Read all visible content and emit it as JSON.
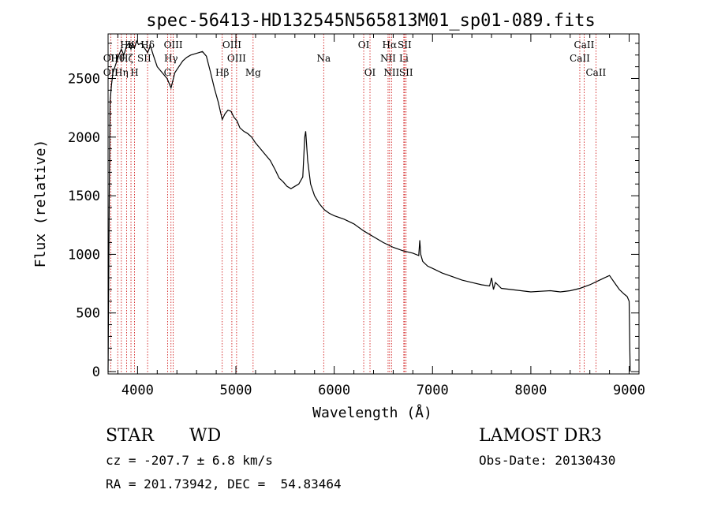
{
  "chart_data": {
    "type": "line",
    "title": "spec-56413-HD132545N565813M01_sp01-089.fits",
    "xlabel": "Wavelength (Å)",
    "ylabel": "Flux (relative)",
    "xlim": [
      3700,
      9100
    ],
    "ylim": [
      -20,
      2880
    ],
    "xticks": [
      4000,
      5000,
      6000,
      7000,
      8000,
      9000
    ],
    "yticks": [
      0,
      500,
      1000,
      1500,
      2000,
      2500
    ],
    "x_tick_labels": [
      "4000",
      "5000",
      "6000",
      "7000",
      "8000",
      "9000"
    ],
    "y_tick_labels": [
      "0",
      "500",
      "1000",
      "1500",
      "2000",
      "2500"
    ],
    "grid": false,
    "series": [
      {
        "name": "spectrum",
        "x": [
          3700,
          3712,
          3720,
          3735,
          3750,
          3770,
          3790,
          3810,
          3835,
          3860,
          3890,
          3910,
          3933,
          3950,
          3969,
          3990,
          4010,
          4040,
          4070,
          4102,
          4130,
          4160,
          4200,
          4250,
          4300,
          4340,
          4380,
          4420,
          4460,
          4500,
          4540,
          4580,
          4620,
          4660,
          4700,
          4740,
          4780,
          4820,
          4861,
          4890,
          4920,
          4950,
          4980,
          5010,
          5040,
          5080,
          5120,
          5160,
          5200,
          5250,
          5300,
          5350,
          5400,
          5440,
          5480,
          5520,
          5560,
          5600,
          5640,
          5680,
          5700,
          5710,
          5730,
          5760,
          5800,
          5850,
          5900,
          5950,
          6000,
          6100,
          6200,
          6300,
          6400,
          6500,
          6600,
          6700,
          6800,
          6860,
          6870,
          6880,
          6900,
          6950,
          7000,
          7100,
          7200,
          7300,
          7400,
          7500,
          7580,
          7600,
          7620,
          7640,
          7700,
          7800,
          7900,
          8000,
          8100,
          8200,
          8300,
          8400,
          8500,
          8600,
          8700,
          8750,
          8800,
          8850,
          8900,
          8950,
          8980,
          9000,
          9010
        ],
        "values": [
          0,
          1500,
          2300,
          2450,
          2550,
          2600,
          2650,
          2700,
          2750,
          2700,
          2780,
          2800,
          2750,
          2800,
          2760,
          2820,
          2790,
          2800,
          2760,
          2720,
          2780,
          2700,
          2600,
          2550,
          2500,
          2420,
          2550,
          2600,
          2650,
          2680,
          2700,
          2710,
          2720,
          2730,
          2690,
          2560,
          2420,
          2300,
          2150,
          2200,
          2230,
          2220,
          2170,
          2140,
          2080,
          2050,
          2030,
          2000,
          1950,
          1900,
          1850,
          1800,
          1720,
          1650,
          1620,
          1580,
          1560,
          1580,
          1600,
          1660,
          2000,
          2050,
          1800,
          1600,
          1500,
          1430,
          1380,
          1350,
          1330,
          1300,
          1260,
          1200,
          1150,
          1100,
          1060,
          1030,
          1010,
          990,
          1120,
          1000,
          940,
          900,
          880,
          840,
          810,
          780,
          760,
          740,
          730,
          800,
          700,
          760,
          710,
          700,
          690,
          680,
          685,
          690,
          680,
          690,
          710,
          740,
          780,
          800,
          820,
          760,
          700,
          660,
          640,
          600,
          0
        ]
      }
    ],
    "line_markers": [
      {
        "label": "Hδ",
        "x": 4102,
        "row": 0
      },
      {
        "label": "OII",
        "x": 3727,
        "row": 1
      },
      {
        "label": "OII",
        "x": 3727,
        "row": 2
      },
      {
        "label": "Hε",
        "x": 3889,
        "row": 0
      },
      {
        "label": "Hθ",
        "x": 3798,
        "row": 1
      },
      {
        "label": "Hη",
        "x": 3835,
        "row": 2
      },
      {
        "label": "K",
        "x": 3933,
        "row": 0
      },
      {
        "label": "Hζ",
        "x": 3889,
        "row": 1
      },
      {
        "label": "H",
        "x": 3969,
        "row": 2
      },
      {
        "label": "SII",
        "x": 4068,
        "row": 1
      },
      {
        "label": "OIII",
        "x": 4363,
        "row": 0
      },
      {
        "label": "Hγ",
        "x": 4340,
        "row": 1
      },
      {
        "label": "G",
        "x": 4305,
        "row": 2
      },
      {
        "label": "OIII",
        "x": 4959,
        "row": 0
      },
      {
        "label": "OIII",
        "x": 5007,
        "row": 1
      },
      {
        "label": "Hβ",
        "x": 4861,
        "row": 2
      },
      {
        "label": "Mg",
        "x": 5175,
        "row": 2
      },
      {
        "label": "Na",
        "x": 5893,
        "row": 1
      },
      {
        "label": "OI",
        "x": 6300,
        "row": 0
      },
      {
        "label": "OI",
        "x": 6364,
        "row": 2
      },
      {
        "label": "Hα",
        "x": 6563,
        "row": 0
      },
      {
        "label": "SII",
        "x": 6716,
        "row": 0
      },
      {
        "label": "NII",
        "x": 6548,
        "row": 1
      },
      {
        "label": "Li",
        "x": 6708,
        "row": 1
      },
      {
        "label": "NII",
        "x": 6583,
        "row": 2
      },
      {
        "label": "SII",
        "x": 6731,
        "row": 2
      },
      {
        "label": "CaII",
        "x": 8542,
        "row": 0
      },
      {
        "label": "CaII",
        "x": 8498,
        "row": 1
      },
      {
        "label": "CaII",
        "x": 8662,
        "row": 2
      }
    ],
    "marker_line_x": [
      3727,
      3798,
      3835,
      3889,
      3933,
      3969,
      4102,
      4305,
      4340,
      4363,
      4861,
      4959,
      5007,
      5175,
      5893,
      6300,
      6364,
      6548,
      6563,
      6583,
      6708,
      6716,
      6731,
      8498,
      8542,
      8662
    ]
  },
  "info": {
    "object_class": "STAR",
    "subclass": "WD",
    "survey": "LAMOST DR3",
    "cz": "cz = -207.7 ± 6.8 km/s",
    "obs_date": "Obs-Date: 20130430",
    "coords": "RA = 201.73942, DEC =  54.83464"
  },
  "colors": {
    "line": "#000000",
    "marker_line": "#cc0000"
  }
}
